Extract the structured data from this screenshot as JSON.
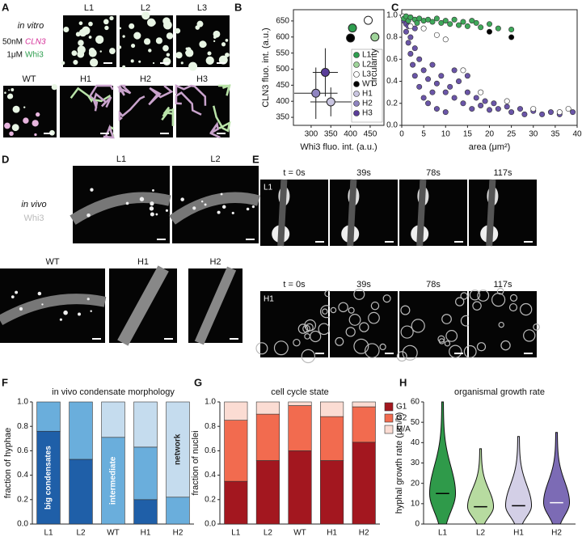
{
  "panel_letters": [
    "A",
    "B",
    "C",
    "D",
    "E",
    "F",
    "G",
    "H"
  ],
  "images": {
    "A": {
      "condition": "in vitro",
      "cln3_conc": "50nM",
      "cln3": "CLN3",
      "whi3_conc": "1μM",
      "whi3": "Whi3",
      "labels": [
        "L1",
        "L2",
        "L3",
        "WT",
        "H1",
        "H2",
        "H3"
      ]
    },
    "D": {
      "condition": "in vivo",
      "protein": "Whi3",
      "labels": [
        "L1",
        "L2",
        "WT",
        "H1",
        "H2"
      ]
    },
    "E": {
      "times": [
        "t = 0s",
        "39s",
        "78s",
        "117s"
      ],
      "rows": [
        "L1",
        "H1"
      ]
    }
  },
  "chart_data": [
    {
      "type": "scatter",
      "xlabel": "Whi3 fluo. int. (a.u.)",
      "ylabel": "CLN3 fluo. int. (a.u.)",
      "xlim": [
        255,
        485
      ],
      "xticks": [
        300,
        350,
        400,
        450
      ],
      "ylim": [
        325,
        685
      ],
      "yticks": [
        350,
        400,
        450,
        500,
        550,
        600,
        650
      ],
      "frame": true,
      "legend": "lower right",
      "series": [
        {
          "name": "L1",
          "color": "#2e9e4f",
          "x": 405,
          "y": 628,
          "xerr": 8,
          "yerr": 10
        },
        {
          "name": "L2",
          "color": "#9fd49a",
          "x": 462,
          "y": 600,
          "xerr": 10,
          "yerr": 10
        },
        {
          "name": "L3",
          "color": "#ffffff",
          "x": 445,
          "y": 652,
          "xerr": 10,
          "yerr": 8
        },
        {
          "name": "WT",
          "color": "#000000",
          "x": 400,
          "y": 597,
          "xerr": 8,
          "yerr": 8
        },
        {
          "name": "H1",
          "color": "#c9c5e0",
          "x": 350,
          "y": 398,
          "xerr": 52,
          "yerr": 45
        },
        {
          "name": "H2",
          "color": "#8f84c0",
          "x": 312,
          "y": 425,
          "xerr": 55,
          "yerr": 80
        },
        {
          "name": "H3",
          "color": "#5a3d99",
          "x": 336,
          "y": 490,
          "xerr": 32,
          "yerr": 75
        }
      ]
    },
    {
      "type": "scatter",
      "xlabel": "area (μm²)",
      "ylabel": "circularity",
      "xlim": [
        0,
        40
      ],
      "xticks": [
        0,
        5,
        10,
        15,
        20,
        25,
        30,
        35,
        40
      ],
      "ylim": [
        0,
        1.05
      ],
      "yticks": [
        {
          "value": 0,
          "label": "0.0"
        },
        0.2,
        0.4,
        0.6,
        0.8,
        {
          "value": 1,
          "label": "1.0"
        }
      ],
      "frame": true,
      "series": [
        {
          "color": "#6a55a8",
          "points": [
            [
              0.5,
              0.95
            ],
            [
              1,
              0.85
            ],
            [
              1.5,
              0.75
            ],
            [
              2,
              0.65
            ],
            [
              2.5,
              0.55
            ],
            [
              3,
              0.7
            ],
            [
              3,
              0.45
            ],
            [
              4,
              0.6
            ],
            [
              4,
              0.35
            ],
            [
              5,
              0.5
            ],
            [
              5,
              0.25
            ],
            [
              6,
              0.42
            ],
            [
              6,
              0.2
            ],
            [
              7,
              0.55
            ],
            [
              7,
              0.3
            ],
            [
              8,
              0.38
            ],
            [
              8,
              0.15
            ],
            [
              9,
              0.45
            ],
            [
              10,
              0.3
            ],
            [
              10,
              0.12
            ],
            [
              11,
              0.35
            ],
            [
              12,
              0.25
            ],
            [
              13,
              0.4
            ],
            [
              14,
              0.2
            ],
            [
              15,
              0.3
            ],
            [
              16,
              0.15
            ],
            [
              17,
              0.25
            ],
            [
              18,
              0.18
            ],
            [
              19,
              0.22
            ],
            [
              20,
              0.14
            ],
            [
              21,
              0.2
            ],
            [
              22,
              0.15
            ],
            [
              24,
              0.17
            ],
            [
              25,
              0.12
            ],
            [
              27,
              0.15
            ],
            [
              28,
              0.1
            ],
            [
              30,
              0.13
            ],
            [
              32,
              0.1
            ],
            [
              34,
              0.12
            ],
            [
              36,
              0.1
            ],
            [
              39,
              0.12
            ],
            [
              1,
              0.92
            ],
            [
              2,
              0.8
            ],
            [
              3,
              0.88
            ],
            [
              2,
              0.98
            ],
            [
              1.5,
              0.9
            ],
            [
              12,
              0.5
            ],
            [
              15,
              0.45
            ]
          ]
        },
        {
          "color": "#ffffff",
          "points": [
            [
              0.3,
              0.99
            ],
            [
              1,
              0.97
            ],
            [
              2,
              0.9
            ],
            [
              5,
              0.88
            ],
            [
              8,
              0.82
            ],
            [
              10,
              0.78
            ],
            [
              14,
              0.5
            ],
            [
              18,
              0.3
            ],
            [
              24,
              0.22
            ],
            [
              30,
              0.15
            ],
            [
              36,
              0.12
            ],
            [
              38,
              0.15
            ]
          ]
        },
        {
          "color": "#3fa85a",
          "points": [
            [
              0.5,
              0.97
            ],
            [
              1,
              0.99
            ],
            [
              1.5,
              0.95
            ],
            [
              2,
              0.98
            ],
            [
              3,
              0.96
            ],
            [
              3.5,
              0.93
            ],
            [
              4,
              0.97
            ],
            [
              5,
              0.95
            ],
            [
              6,
              0.96
            ],
            [
              7,
              0.94
            ],
            [
              8,
              0.97
            ],
            [
              9,
              0.93
            ],
            [
              10,
              0.95
            ],
            [
              11,
              0.92
            ],
            [
              12,
              0.96
            ],
            [
              14,
              0.94
            ],
            [
              15,
              0.9
            ],
            [
              17,
              0.93
            ],
            [
              18,
              0.89
            ],
            [
              20,
              0.92
            ],
            [
              22,
              0.88
            ],
            [
              25,
              0.87
            ],
            [
              13,
              0.91
            ],
            [
              16,
              0.95
            ]
          ]
        },
        {
          "color": "#000000",
          "points": [
            [
              20,
              0.85
            ],
            [
              25,
              0.8
            ]
          ]
        }
      ]
    },
    {
      "type": "bar",
      "stacked": true,
      "title": "in vivo condensate morphology",
      "ylabel": "fraction of hyphae",
      "categories": [
        "L1",
        "L2",
        "WT",
        "H1",
        "H2"
      ],
      "ylim": [
        0,
        1
      ],
      "yticks": [
        {
          "value": 0,
          "label": "0.0"
        },
        0.2,
        0.4,
        0.6,
        0.8,
        {
          "value": 1,
          "label": "1.0"
        }
      ],
      "series_labels_in_bars": true,
      "series": [
        {
          "name": "big condensates",
          "color": "#1f5fa8",
          "values": [
            0.76,
            0.53,
            0,
            0.2,
            0
          ]
        },
        {
          "name": "intermediate",
          "color": "#6aaedc",
          "values": [
            0.24,
            0.47,
            0.71,
            0.43,
            0.22
          ]
        },
        {
          "name": "network",
          "color": "#c5dcee",
          "values": [
            0,
            0,
            0.29,
            0.37,
            0.78
          ]
        }
      ]
    },
    {
      "type": "bar",
      "stacked": true,
      "title": "cell cycle state",
      "ylabel": "fraction of nuclei",
      "categories": [
        "L1",
        "L2",
        "WT",
        "H1",
        "H2"
      ],
      "ylim": [
        0,
        1
      ],
      "yticks": [
        {
          "value": 0,
          "label": "0.0"
        },
        0.2,
        0.4,
        0.6,
        0.8,
        {
          "value": 1,
          "label": "1.0"
        }
      ],
      "legend": "upper right",
      "series": [
        {
          "name": "G1",
          "color": "#a3171f",
          "values": [
            0.35,
            0.52,
            0.6,
            0.52,
            0.67
          ]
        },
        {
          "name": "G2",
          "color": "#f26b4f",
          "values": [
            0.5,
            0.38,
            0.37,
            0.36,
            0.29
          ]
        },
        {
          "name": "M/A",
          "color": "#fbdcd3",
          "values": [
            0.15,
            0.1,
            0.03,
            0.12,
            0.04
          ]
        }
      ]
    },
    {
      "type": "violin",
      "title": "organismal growth rate",
      "ylabel": "hyphal growth rate (μm/h)",
      "categories": [
        "L1",
        "L2",
        "H1",
        "H2"
      ],
      "ylim": [
        0,
        60
      ],
      "yticks": [
        0,
        10,
        20,
        30,
        40,
        50,
        60
      ],
      "colors": [
        "#2f9a4a",
        "#b7dba0",
        "#d3cfe6",
        "#7c6bb5"
      ],
      "median_colors": [
        "#000000",
        "#000000",
        "#000000",
        "#ffffff"
      ],
      "minima": [
        0,
        0,
        0,
        0
      ],
      "medians": [
        15,
        8.5,
        9,
        10.5
      ],
      "maxima": [
        60,
        37,
        43,
        45
      ]
    }
  ]
}
